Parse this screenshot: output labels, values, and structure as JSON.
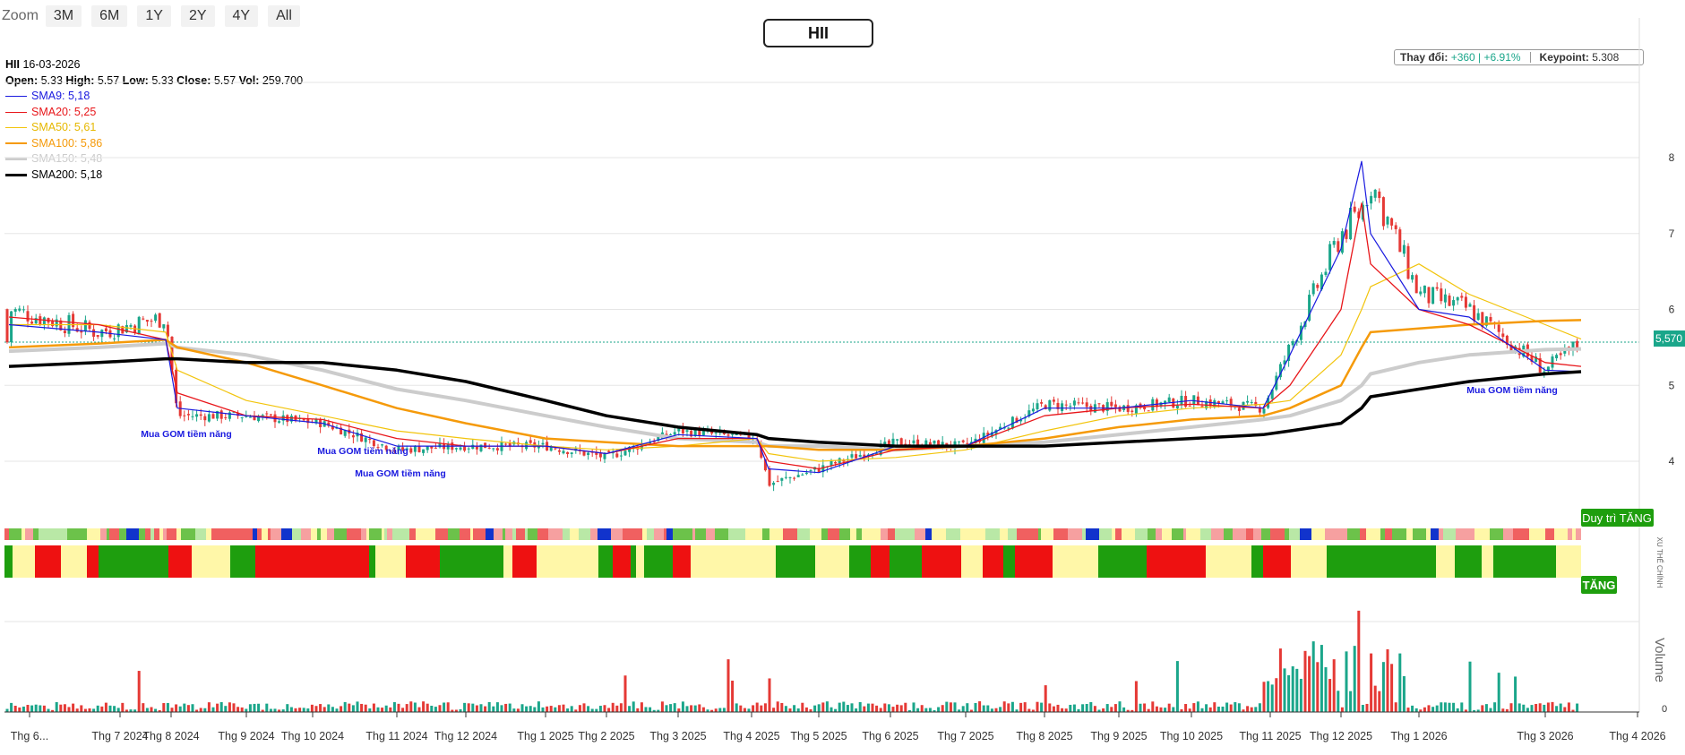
{
  "toolbar": {
    "zoom_label": "Zoom",
    "buttons": [
      "3M",
      "6M",
      "1Y",
      "2Y",
      "4Y",
      "All"
    ]
  },
  "symbol": "HII",
  "info": {
    "symbol": "HII",
    "date": "16-03-2026",
    "open_label": "Open:",
    "open": "5.33",
    "high_label": "High:",
    "high": "5.57",
    "low_label": "Low:",
    "low": "5.33",
    "close_label": "Close:",
    "close": "5.57",
    "vol_label": "Vol:",
    "vol": "259.700"
  },
  "legend": [
    {
      "label": "SMA9: 5,18",
      "color": "#1a1adf"
    },
    {
      "label": "SMA20: 5,25",
      "color": "#e8161a"
    },
    {
      "label": "SMA50: 5,61",
      "color": "#f2c40c"
    },
    {
      "label": "SMA100: 5,86",
      "color": "#f59a0a"
    },
    {
      "label": "SMA150: 5,48",
      "color": "#cccccc"
    },
    {
      "label": "SMA200: 5,18",
      "color": "#000000"
    }
  ],
  "change_box": {
    "label": "Thay đổi:",
    "value": "+360 | +6.91%",
    "keypoint_label": "Keypoint:",
    "keypoint_value": "5.308"
  },
  "price_tag": "5,570",
  "signal_tag": "Duy trì TĂNG",
  "trend_tag": "TĂNG",
  "trend_axis_label": "XU THẾ CHÍNH",
  "volume_axis_label": "Volume",
  "annotations": [
    "Mua GOM tiềm năng",
    "Mua GOM tiềm năng",
    "Mua GOM tiềm năng",
    "Mua GOM tiềm năng"
  ],
  "colors": {
    "up": "#1aa68a",
    "down": "#e53935",
    "green_band": "#1e9e0e",
    "red_band": "#ee1111",
    "yellow_band": "#fff7a8"
  },
  "chart_data": {
    "type": "candlestick",
    "title": "HII",
    "x_ticks": [
      "Thg 6...",
      "Thg 7 2024",
      "Thg 8 2024",
      "Thg 9 2024",
      "Thg 10 2024",
      "Thg 11 2024",
      "Thg 12 2024",
      "Thg 1 2025",
      "Thg 2 2025",
      "Thg 3 2025",
      "Thg 4 2025",
      "Thg 5 2025",
      "Thg 6 2025",
      "Thg 7 2025",
      "Thg 8 2025",
      "Thg 9 2025",
      "Thg 10 2025",
      "Thg 11 2025",
      "Thg 12 2025",
      "Thg 1 2026",
      "Thg 3 2026",
      "Thg 4 2026"
    ],
    "y_ticks": [
      4,
      5,
      6,
      7,
      8
    ],
    "ylim": [
      3.2,
      9.0
    ],
    "volume_ticks": [
      "0"
    ],
    "close_series": {
      "x": [
        "2024-06",
        "2024-07",
        "2024-08",
        "2024-08",
        "2024-09",
        "2024-10",
        "2024-11",
        "2024-12",
        "2025-01",
        "2025-02",
        "2025-03",
        "2025-04",
        "2025-04",
        "2025-05",
        "2025-06",
        "2025-07",
        "2025-08",
        "2025-09",
        "2025-10",
        "2025-11",
        "2025-11",
        "2025-12",
        "2025-12",
        "2025-12",
        "2026-01",
        "2026-02",
        "2026-03",
        "2026-03"
      ],
      "y": [
        6.0,
        5.7,
        5.9,
        4.6,
        4.6,
        4.5,
        4.15,
        4.2,
        4.2,
        4.05,
        4.4,
        4.3,
        3.7,
        3.9,
        4.25,
        4.2,
        4.75,
        4.7,
        4.8,
        4.7,
        5.5,
        7.0,
        7.3,
        7.7,
        6.2,
        6.0,
        5.2,
        5.57
      ]
    },
    "series": [
      {
        "name": "SMA9",
        "values": [
          5.8,
          5.7,
          5.6,
          4.7,
          4.6,
          4.5,
          4.2,
          4.2,
          4.2,
          4.1,
          4.35,
          4.3,
          3.9,
          3.85,
          4.2,
          4.2,
          4.7,
          4.7,
          4.8,
          4.7,
          5.4,
          6.8,
          7.95,
          7.0,
          6.0,
          5.9,
          5.2,
          5.18
        ]
      },
      {
        "name": "SMA20",
        "values": [
          5.9,
          5.8,
          5.6,
          4.9,
          4.6,
          4.55,
          4.3,
          4.2,
          4.2,
          4.1,
          4.3,
          4.3,
          4.0,
          3.9,
          4.15,
          4.2,
          4.6,
          4.7,
          4.75,
          4.7,
          5.0,
          6.0,
          7.4,
          6.6,
          6.0,
          5.8,
          5.3,
          5.25
        ]
      },
      {
        "name": "SMA50",
        "values": [
          5.8,
          5.8,
          5.7,
          5.2,
          4.8,
          4.6,
          4.4,
          4.3,
          4.2,
          4.15,
          4.2,
          4.3,
          4.1,
          4.0,
          4.05,
          4.15,
          4.4,
          4.6,
          4.7,
          4.75,
          4.8,
          5.4,
          6.0,
          6.3,
          6.6,
          6.2,
          5.8,
          5.61
        ]
      },
      {
        "name": "SMA100",
        "values": [
          5.5,
          5.55,
          5.6,
          5.5,
          5.3,
          5.0,
          4.7,
          4.5,
          4.3,
          4.25,
          4.2,
          4.2,
          4.2,
          4.15,
          4.15,
          4.2,
          4.3,
          4.45,
          4.55,
          4.6,
          4.7,
          5.0,
          5.5,
          5.7,
          5.75,
          5.8,
          5.85,
          5.86
        ]
      },
      {
        "name": "SMA150",
        "values": [
          5.45,
          5.5,
          5.55,
          5.5,
          5.4,
          5.2,
          4.95,
          4.8,
          4.6,
          4.45,
          4.3,
          4.25,
          4.2,
          4.2,
          4.15,
          4.2,
          4.25,
          4.35,
          4.45,
          4.55,
          4.6,
          4.8,
          5.0,
          5.15,
          5.3,
          5.4,
          5.47,
          5.48
        ]
      },
      {
        "name": "SMA200",
        "values": [
          5.25,
          5.3,
          5.35,
          5.35,
          5.3,
          5.3,
          5.2,
          5.05,
          4.8,
          4.6,
          4.45,
          4.35,
          4.3,
          4.25,
          4.2,
          4.2,
          4.2,
          4.25,
          4.3,
          4.35,
          4.4,
          4.5,
          4.7,
          4.85,
          4.95,
          5.05,
          5.15,
          5.18
        ]
      }
    ],
    "grid": true
  }
}
